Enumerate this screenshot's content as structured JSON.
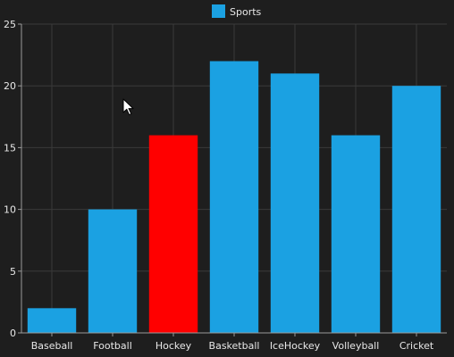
{
  "chart_data": {
    "type": "bar",
    "categories": [
      "Baseball",
      "Football",
      "Hockey",
      "Basketball",
      "IceHockey",
      "Volleyball",
      "Cricket"
    ],
    "series": [
      {
        "name": "Sports",
        "values": [
          2,
          10,
          16,
          22,
          21,
          16,
          20
        ]
      }
    ],
    "highlight_index": 2,
    "highlight_color": "#ff0000",
    "series_color": "#1ba1e2",
    "ylim": [
      0,
      25
    ],
    "yticks": [
      0,
      5,
      10,
      15,
      20,
      25
    ],
    "grid": true,
    "legend": "top-center",
    "title": "",
    "xlabel": "",
    "ylabel": ""
  },
  "colors": {
    "background": "#1e1e1e",
    "grid": "#3a3a3a",
    "axis": "#9a9a9a",
    "text": "#e8e8e8"
  },
  "cursor": {
    "icon": "mouse-pointer-icon"
  }
}
